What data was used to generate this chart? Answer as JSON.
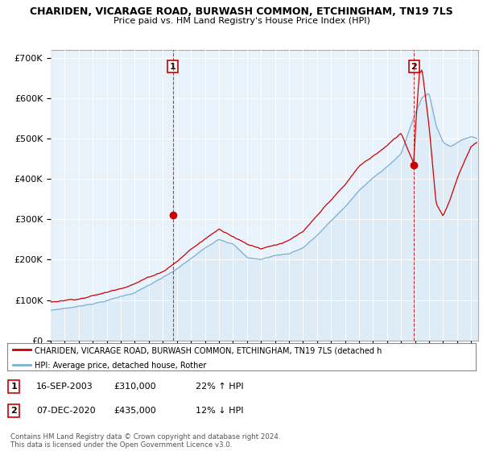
{
  "title": "CHARIDEN, VICARAGE ROAD, BURWASH COMMON, ETCHINGHAM, TN19 7LS",
  "subtitle": "Price paid vs. HM Land Registry's House Price Index (HPI)",
  "ylabel_ticks": [
    "£0",
    "£100K",
    "£200K",
    "£300K",
    "£400K",
    "£500K",
    "£600K",
    "£700K"
  ],
  "ylim": [
    0,
    720000
  ],
  "xlim_start": 1995.0,
  "xlim_end": 2025.5,
  "hpi_color": "#7bafd4",
  "hpi_fill_color": "#d6e8f5",
  "price_color": "#cc0000",
  "vline_color": "#cc0000",
  "sale1_x": 2003.71,
  "sale1_y": 310000,
  "sale1_label": "1",
  "sale2_x": 2020.93,
  "sale2_y": 435000,
  "sale2_label": "2",
  "legend_line1": "CHARIDEN, VICARAGE ROAD, BURWASH COMMON, ETCHINGHAM, TN19 7LS (detached h",
  "legend_line2": "HPI: Average price, detached house, Rother",
  "table_row1_num": "1",
  "table_row1_date": "16-SEP-2003",
  "table_row1_price": "£310,000",
  "table_row1_hpi": "22% ↑ HPI",
  "table_row2_num": "2",
  "table_row2_date": "07-DEC-2020",
  "table_row2_price": "£435,000",
  "table_row2_hpi": "12% ↓ HPI",
  "footnote": "Contains HM Land Registry data © Crown copyright and database right 2024.\nThis data is licensed under the Open Government Licence v3.0.",
  "bg_color": "#ffffff",
  "grid_color": "#cccccc"
}
